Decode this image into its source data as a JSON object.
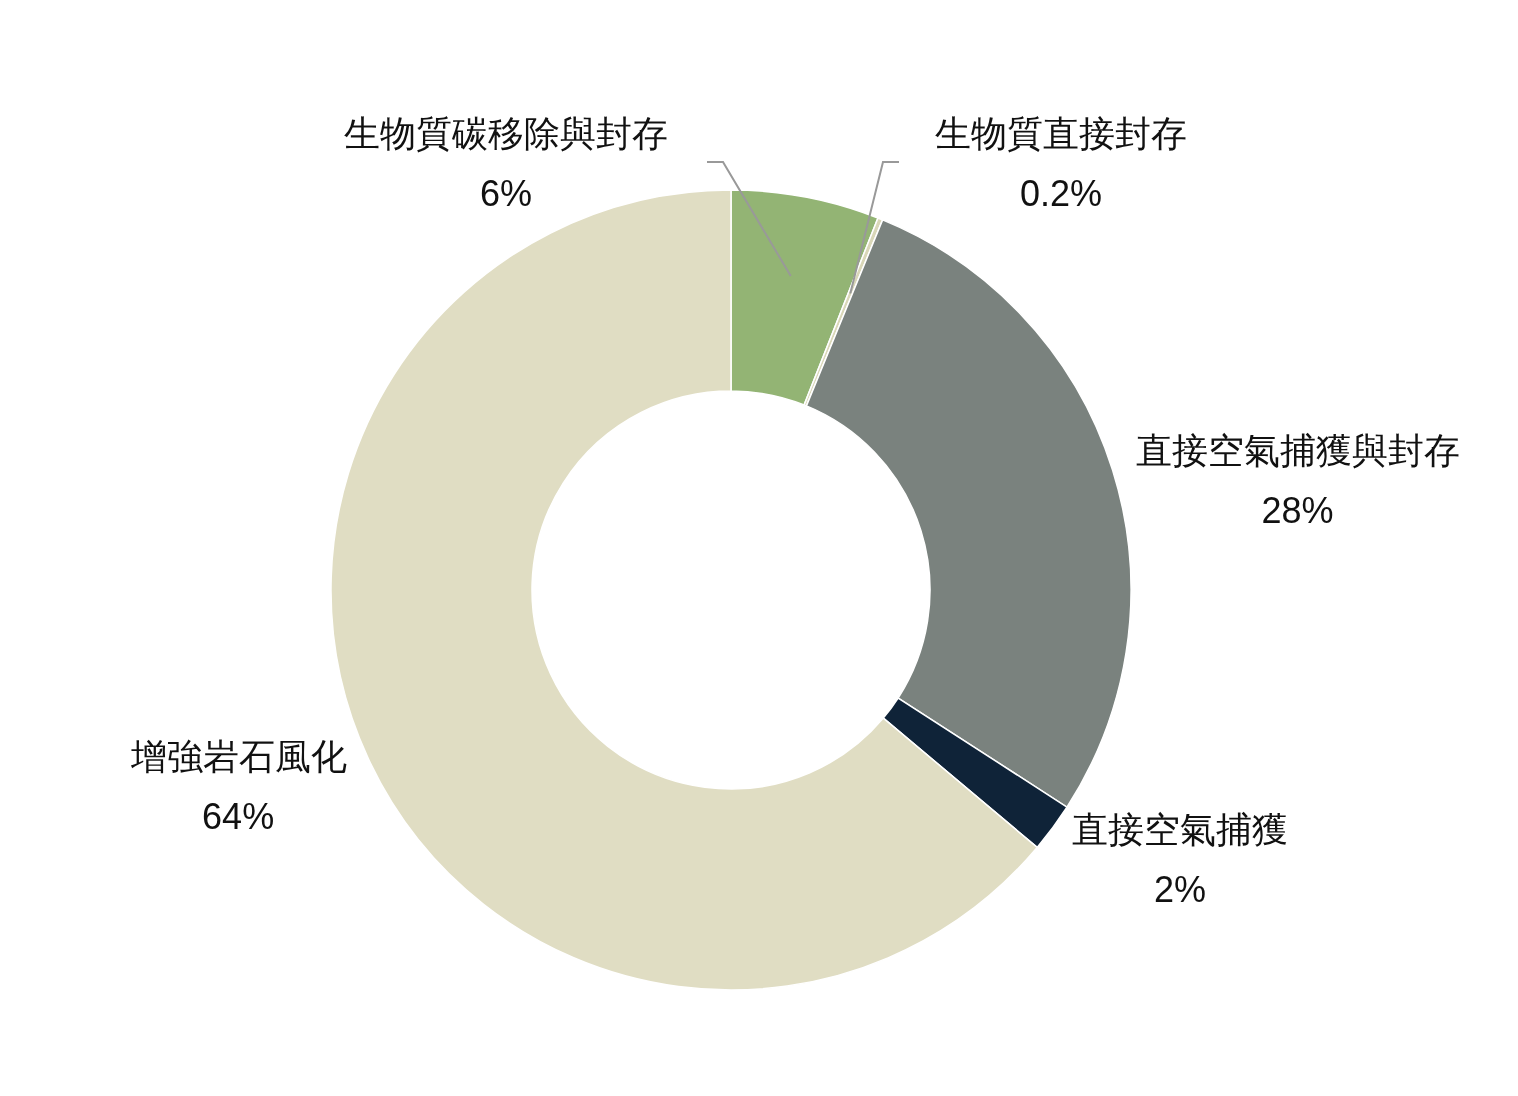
{
  "chart_data": {
    "type": "donut",
    "categories": [
      "生物質碳移除與封存",
      "生物質直接封存",
      "直接空氣捕獲與封存",
      "直接空氣捕獲",
      "增強岩石風化"
    ],
    "values": [
      6,
      0.2,
      28,
      2,
      64
    ],
    "value_labels": [
      "6%",
      "0.2%",
      "28%",
      "2%",
      "64%"
    ],
    "colors": [
      "#93b474",
      "#d9d7b8",
      "#7a827e",
      "#0f2338",
      "#e0ddc3"
    ]
  }
}
